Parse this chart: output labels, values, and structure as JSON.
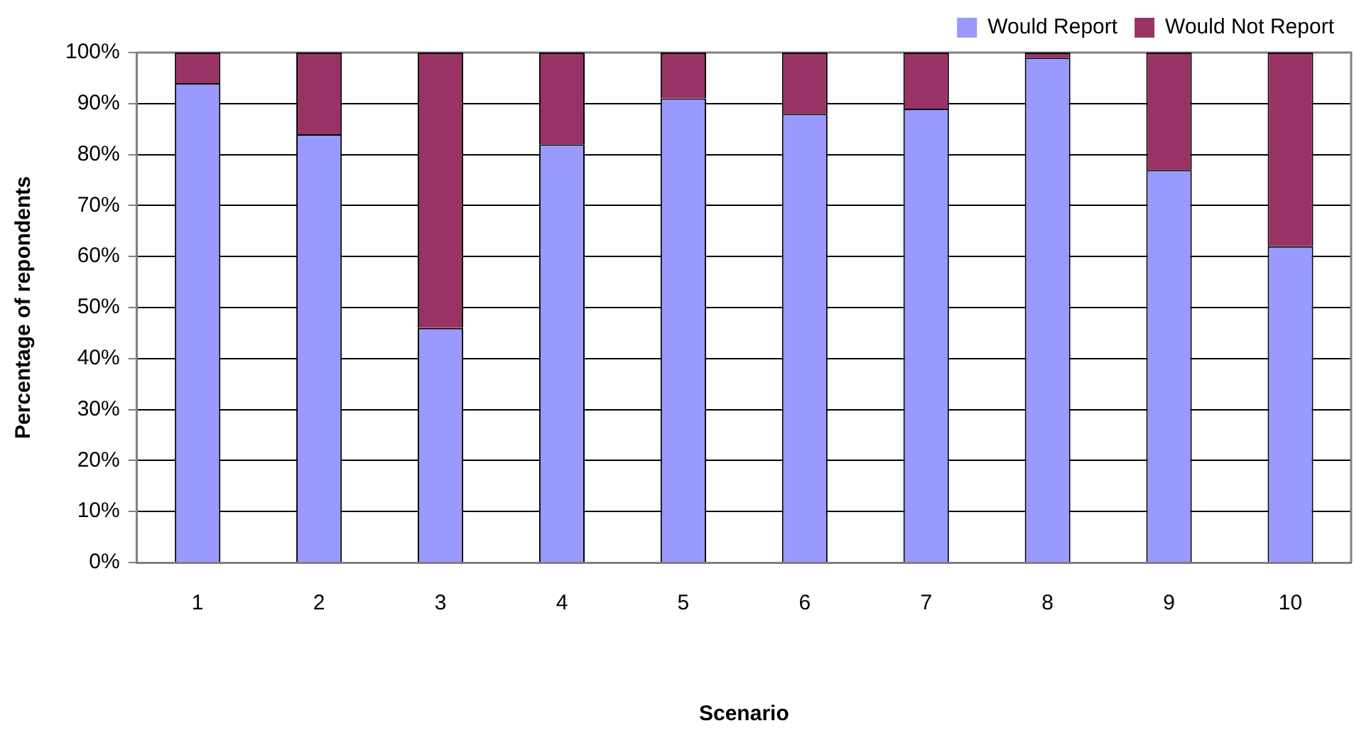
{
  "chart_data": {
    "type": "bar",
    "stacked": true,
    "xlabel": "Scenario",
    "ylabel": "Percentage of repondents",
    "categories": [
      "1",
      "2",
      "3",
      "4",
      "5",
      "6",
      "7",
      "8",
      "9",
      "10"
    ],
    "series": [
      {
        "name": "Would Report",
        "color": "#9999ff",
        "values": [
          94,
          84,
          46,
          82,
          91,
          88,
          89,
          99,
          77,
          62
        ]
      },
      {
        "name": "Would Not Report",
        "color": "#993366",
        "values": [
          6,
          16,
          54,
          18,
          9,
          12,
          11,
          1,
          23,
          38
        ]
      }
    ],
    "ylim": [
      0,
      100
    ],
    "yticks": [
      {
        "value": 0,
        "label": "0%"
      },
      {
        "value": 10,
        "label": "10%"
      },
      {
        "value": 20,
        "label": "20%"
      },
      {
        "value": 30,
        "label": "30%"
      },
      {
        "value": 40,
        "label": "40%"
      },
      {
        "value": 50,
        "label": "50%"
      },
      {
        "value": 60,
        "label": "60%"
      },
      {
        "value": 70,
        "label": "70%"
      },
      {
        "value": 80,
        "label": "80%"
      },
      {
        "value": 90,
        "label": "90%"
      },
      {
        "value": 100,
        "label": "100%"
      }
    ],
    "grid": "y",
    "legend": "top right"
  }
}
